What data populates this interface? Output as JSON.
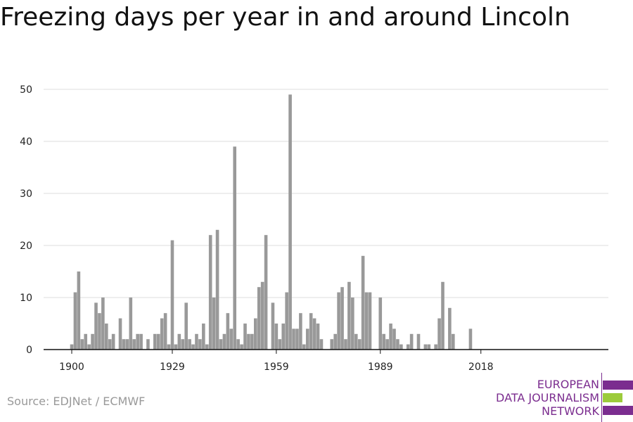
{
  "title": "Freezing days per year in and around Lincoln",
  "source": "Source: EDJNet / ECMWF",
  "logo": {
    "line1": "EUROPEAN",
    "line2": "DATA JOURNALISM",
    "line3": "NETWORK"
  },
  "colors": {
    "bar": "#999999",
    "grid": "#dddddd",
    "axis": "#111111",
    "logo_purple": "#7b2d8f",
    "logo_green": "#9ccb3b"
  },
  "chart_data": {
    "type": "bar",
    "title": "Freezing days per year in and around Lincoln",
    "xlabel": "",
    "ylabel": "",
    "ylim": [
      0,
      50
    ],
    "yticks": [
      0,
      10,
      20,
      30,
      40,
      50
    ],
    "xticks": [
      1900,
      1929,
      1959,
      1989,
      2018
    ],
    "grid": true,
    "x": [
      1900,
      1901,
      1902,
      1903,
      1904,
      1905,
      1906,
      1907,
      1908,
      1909,
      1910,
      1911,
      1912,
      1913,
      1914,
      1915,
      1916,
      1917,
      1918,
      1919,
      1920,
      1921,
      1922,
      1923,
      1924,
      1925,
      1926,
      1927,
      1928,
      1929,
      1930,
      1931,
      1932,
      1933,
      1934,
      1935,
      1936,
      1937,
      1938,
      1939,
      1940,
      1941,
      1942,
      1943,
      1944,
      1945,
      1946,
      1947,
      1948,
      1949,
      1950,
      1951,
      1952,
      1953,
      1954,
      1955,
      1956,
      1957,
      1958,
      1959,
      1960,
      1961,
      1962,
      1963,
      1964,
      1965,
      1966,
      1967,
      1968,
      1969,
      1970,
      1971,
      1972,
      1973,
      1974,
      1975,
      1976,
      1977,
      1978,
      1979,
      1980,
      1981,
      1982,
      1983,
      1984,
      1985,
      1986,
      1987,
      1988,
      1989,
      1990,
      1991,
      1992,
      1993,
      1994,
      1995,
      1996,
      1997,
      1998,
      1999,
      2000,
      2001,
      2002,
      2003,
      2004,
      2005,
      2006,
      2007,
      2008,
      2009,
      2010,
      2011,
      2012,
      2013,
      2014,
      2015,
      2016,
      2017,
      2018,
      2019
    ],
    "values": [
      1,
      11,
      15,
      2,
      3,
      1,
      3,
      9,
      7,
      10,
      5,
      2,
      3,
      0,
      6,
      2,
      2,
      10,
      2,
      3,
      3,
      0,
      2,
      0,
      3,
      3,
      6,
      7,
      1,
      21,
      1,
      3,
      2,
      9,
      2,
      1,
      3,
      2,
      5,
      1,
      22,
      10,
      23,
      2,
      3,
      7,
      4,
      39,
      2,
      1,
      5,
      3,
      3,
      6,
      12,
      13,
      22,
      0,
      9,
      5,
      2,
      5,
      11,
      49,
      4,
      4,
      7,
      1,
      4,
      7,
      6,
      5,
      2,
      0,
      0,
      2,
      3,
      11,
      12,
      2,
      13,
      10,
      3,
      2,
      18,
      11,
      11,
      0,
      0,
      10,
      3,
      2,
      5,
      4,
      2,
      1,
      0,
      1,
      3,
      0,
      3,
      0,
      1,
      1,
      0,
      1,
      6,
      13,
      0,
      8,
      3,
      0,
      0,
      0,
      0,
      4,
      0,
      0,
      0,
      0
    ]
  }
}
